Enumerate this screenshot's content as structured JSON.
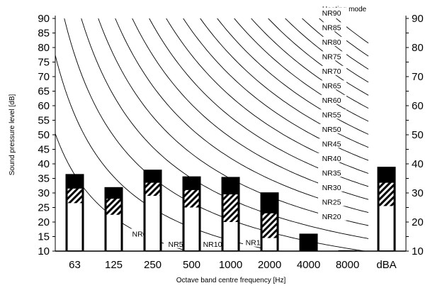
{
  "chart_data": {
    "type": "bar",
    "title": "Heating mode",
    "xlabel": "Octave band centre frequency [Hz]",
    "ylabel": "Sound pressure level [dB]",
    "ylim": [
      10,
      90
    ],
    "yticks": [
      "10",
      "15",
      "20",
      "25",
      "30",
      "35",
      "40",
      "45",
      "50",
      "55",
      "60",
      "65",
      "70",
      "75",
      "80",
      "85",
      "90"
    ],
    "categories": [
      "63",
      "125",
      "250",
      "500",
      "1000",
      "2000",
      "4000",
      "8000",
      "dBA"
    ],
    "series": [
      {
        "values": [
          26.5,
          22.5,
          29.0,
          25.0,
          20.0,
          14.5,
          null,
          null,
          25.5
        ]
      },
      {
        "values": [
          31.5,
          28.0,
          33.5,
          31.0,
          29.5,
          23.0,
          null,
          null,
          33.5
        ]
      },
      {
        "values": [
          36.5,
          32.0,
          38.0,
          35.7,
          35.5,
          30.2,
          16.0,
          10.3,
          39.0
        ]
      }
    ],
    "nr_curves": {
      "levels": [
        0,
        5,
        10,
        15,
        20,
        25,
        30,
        35,
        40,
        45,
        50,
        55,
        60,
        65,
        70,
        75,
        80,
        85,
        90
      ],
      "labels": [
        "NR0",
        "NR5",
        "NR10",
        "NR15",
        "NR20",
        "NR25",
        "NR30",
        "NR35",
        "NR40",
        "NR45",
        "NR50",
        "NR55",
        "NR60",
        "NR65",
        "NR70",
        "NR75",
        "NR80",
        "NR85",
        "NR90"
      ]
    },
    "grid": false,
    "legend": "none"
  }
}
